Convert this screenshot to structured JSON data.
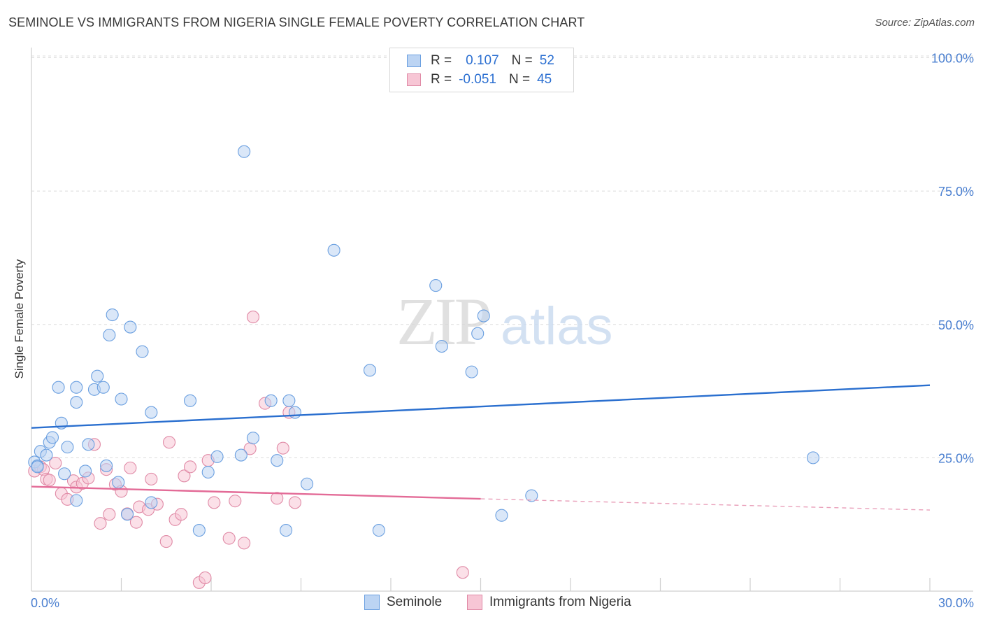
{
  "header": {
    "title": "SEMINOLE VS IMMIGRANTS FROM NIGERIA SINGLE FEMALE POVERTY CORRELATION CHART",
    "source": "Source: ZipAtlas.com"
  },
  "legend": {
    "r_label": "R =",
    "n_label": "N =",
    "rows": [
      {
        "r": "0.107",
        "n": "52",
        "color": "#6a9fe0",
        "fill": "#bcd4f3"
      },
      {
        "r": "-0.051",
        "n": "45",
        "color": "#e08aa6",
        "fill": "#f7c6d5"
      }
    ]
  },
  "watermark": {
    "part1": "ZIP",
    "part2": "atlas"
  },
  "chart_data": {
    "type": "scatter",
    "title": "SEMINOLE VS IMMIGRANTS FROM NIGERIA SINGLE FEMALE POVERTY CORRELATION CHART",
    "xlabel": "",
    "ylabel": "Single Female Poverty",
    "xlim": [
      0,
      30
    ],
    "ylim": [
      0,
      100
    ],
    "x_tick_labels": [
      "0.0%",
      "30.0%"
    ],
    "y_ticks": [
      25,
      50,
      75,
      100
    ],
    "y_tick_labels": [
      "25.0%",
      "50.0%",
      "75.0%",
      "100.0%"
    ],
    "grid": true,
    "legend_position": "top-center",
    "series": [
      {
        "name": "Seminole",
        "color": "#6a9fe0",
        "fill": "#bcd4f3",
        "trend": {
          "x0": 0,
          "y0": 30.6,
          "x1": 30,
          "y1": 38.6
        },
        "points": [
          [
            0.1,
            24.2
          ],
          [
            0.2,
            23.5
          ],
          [
            0.2,
            23.3
          ],
          [
            0.3,
            26.2
          ],
          [
            0.5,
            25.5
          ],
          [
            0.6,
            27.9
          ],
          [
            0.7,
            28.8
          ],
          [
            0.9,
            38.2
          ],
          [
            1.0,
            31.5
          ],
          [
            1.2,
            27.0
          ],
          [
            1.1,
            22.0
          ],
          [
            1.5,
            38.2
          ],
          [
            1.5,
            17.0
          ],
          [
            1.8,
            22.5
          ],
          [
            1.9,
            27.5
          ],
          [
            1.5,
            35.4
          ],
          [
            2.1,
            37.8
          ],
          [
            2.2,
            40.3
          ],
          [
            2.4,
            38.2
          ],
          [
            2.5,
            23.5
          ],
          [
            2.6,
            48.0
          ],
          [
            2.7,
            51.8
          ],
          [
            2.9,
            20.4
          ],
          [
            3.0,
            36.0
          ],
          [
            3.3,
            49.5
          ],
          [
            3.7,
            44.9
          ],
          [
            3.2,
            14.4
          ],
          [
            4.0,
            33.5
          ],
          [
            4.0,
            16.6
          ],
          [
            5.3,
            35.7
          ],
          [
            5.6,
            11.4
          ],
          [
            5.9,
            22.3
          ],
          [
            6.2,
            25.2
          ],
          [
            7.0,
            25.5
          ],
          [
            7.1,
            82.4
          ],
          [
            7.4,
            28.7
          ],
          [
            8.0,
            35.7
          ],
          [
            8.2,
            24.5
          ],
          [
            8.6,
            35.7
          ],
          [
            8.5,
            11.4
          ],
          [
            8.8,
            33.5
          ],
          [
            9.2,
            20.1
          ],
          [
            10.1,
            63.9
          ],
          [
            11.3,
            41.4
          ],
          [
            11.6,
            11.4
          ],
          [
            13.5,
            57.3
          ],
          [
            13.7,
            45.9
          ],
          [
            14.7,
            41.1
          ],
          [
            14.9,
            48.3
          ],
          [
            15.1,
            51.6
          ],
          [
            15.7,
            14.2
          ],
          [
            16.7,
            17.9
          ],
          [
            26.1,
            25.0
          ]
        ]
      },
      {
        "name": "Immigrants from Nigeria",
        "color": "#e08aa6",
        "fill": "#f7c6d5",
        "trend": {
          "x0": 0,
          "y0": 19.6,
          "x1": 15.0,
          "y1": 17.3,
          "x_dash_end": 30,
          "y_dash_end": 15.2
        },
        "points": [
          [
            0.1,
            22.5
          ],
          [
            0.3,
            23.3
          ],
          [
            0.4,
            22.8
          ],
          [
            0.5,
            21.0
          ],
          [
            0.6,
            20.8
          ],
          [
            0.8,
            24.0
          ],
          [
            1.0,
            18.3
          ],
          [
            1.2,
            17.2
          ],
          [
            1.4,
            20.7
          ],
          [
            1.5,
            19.5
          ],
          [
            1.7,
            20.2
          ],
          [
            1.9,
            21.2
          ],
          [
            2.1,
            27.5
          ],
          [
            2.3,
            12.7
          ],
          [
            2.5,
            22.8
          ],
          [
            2.6,
            14.4
          ],
          [
            2.8,
            20.0
          ],
          [
            3.0,
            18.7
          ],
          [
            3.2,
            14.5
          ],
          [
            3.3,
            23.1
          ],
          [
            3.5,
            12.9
          ],
          [
            3.6,
            15.8
          ],
          [
            3.9,
            15.3
          ],
          [
            4.0,
            21.0
          ],
          [
            4.2,
            16.3
          ],
          [
            4.5,
            9.3
          ],
          [
            4.6,
            27.9
          ],
          [
            4.8,
            13.4
          ],
          [
            5.0,
            14.4
          ],
          [
            5.1,
            21.6
          ],
          [
            5.3,
            23.3
          ],
          [
            5.6,
            1.6
          ],
          [
            5.8,
            2.5
          ],
          [
            5.9,
            24.5
          ],
          [
            6.1,
            16.6
          ],
          [
            6.6,
            9.9
          ],
          [
            6.8,
            16.9
          ],
          [
            7.1,
            9.0
          ],
          [
            7.3,
            26.7
          ],
          [
            7.4,
            51.4
          ],
          [
            7.8,
            35.2
          ],
          [
            8.2,
            17.4
          ],
          [
            8.4,
            26.8
          ],
          [
            8.6,
            33.5
          ],
          [
            8.8,
            16.6
          ],
          [
            14.4,
            3.5
          ]
        ]
      }
    ]
  },
  "bottom_legend": [
    {
      "label": "Seminole",
      "color": "#6a9fe0",
      "fill": "#bcd4f3"
    },
    {
      "label": "Immigrants from Nigeria",
      "color": "#e08aa6",
      "fill": "#f7c6d5"
    }
  ]
}
